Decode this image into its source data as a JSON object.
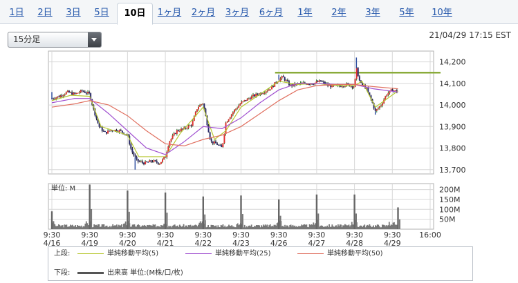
{
  "tabs": [
    {
      "label": "1日",
      "active": false
    },
    {
      "label": "2日",
      "active": false
    },
    {
      "label": "3日",
      "active": false
    },
    {
      "label": "5日",
      "active": false
    },
    {
      "label": "10日",
      "active": true
    },
    {
      "label": "1ヶ月",
      "active": false
    },
    {
      "label": "2ヶ月",
      "active": false
    },
    {
      "label": "3ヶ月",
      "active": false
    },
    {
      "label": "6ヶ月",
      "active": false
    },
    {
      "label": "1年",
      "active": false
    },
    {
      "label": "2年",
      "active": false
    },
    {
      "label": "3年",
      "active": false
    },
    {
      "label": "5年",
      "active": false
    },
    {
      "label": "10年",
      "active": false
    }
  ],
  "interval_select": {
    "value": "15分足"
  },
  "timestamp": "21/04/29 17:15 EST",
  "legend": {
    "upper_label": "上段:",
    "lower_label": "下段:",
    "upper_items": [
      {
        "label": "単純移動平均(5)",
        "color": "#b8c832"
      },
      {
        "label": "単純移動平均(25)",
        "color": "#a050d0"
      },
      {
        "label": "単純移動平均(50)",
        "color": "#e07060"
      }
    ],
    "lower_items": [
      {
        "label": "出来高 単位:(M株/口/枚)",
        "color": "#555555"
      }
    ]
  },
  "chart_data": {
    "type": "candlestick",
    "price_panel": {
      "ylim": [
        13680,
        14250
      ],
      "yticks": [
        "14,200",
        "14,100",
        "14,000",
        "13,900",
        "13,800",
        "13,700"
      ],
      "ytick_values": [
        14200,
        14100,
        14000,
        13900,
        13800,
        13700
      ],
      "reference_line": 14150,
      "reference_line_color": "#8aab3a",
      "close_path": [
        [
          0,
          14030
        ],
        [
          0.2,
          14040
        ],
        [
          0.4,
          14060
        ],
        [
          0.6,
          14050
        ],
        [
          0.8,
          14065
        ],
        [
          1.0,
          14050
        ],
        [
          1.1,
          13980
        ],
        [
          1.25,
          13900
        ],
        [
          1.4,
          13870
        ],
        [
          1.6,
          13885
        ],
        [
          1.8,
          13880
        ],
        [
          2.0,
          13860
        ],
        [
          2.1,
          13790
        ],
        [
          2.25,
          13740
        ],
        [
          2.45,
          13730
        ],
        [
          2.65,
          13740
        ],
        [
          2.85,
          13730
        ],
        [
          3.0,
          13760
        ],
        [
          3.1,
          13830
        ],
        [
          3.3,
          13880
        ],
        [
          3.5,
          13890
        ],
        [
          3.7,
          13910
        ],
        [
          3.85,
          13990
        ],
        [
          4.0,
          14010
        ],
        [
          4.05,
          13960
        ],
        [
          4.2,
          13830
        ],
        [
          4.35,
          13820
        ],
        [
          4.5,
          13800
        ],
        [
          4.6,
          13920
        ],
        [
          4.8,
          13970
        ],
        [
          5.0,
          14010
        ],
        [
          5.3,
          14040
        ],
        [
          5.6,
          14060
        ],
        [
          5.8,
          14080
        ],
        [
          5.95,
          14110
        ],
        [
          6.1,
          14130
        ],
        [
          6.3,
          14090
        ],
        [
          6.6,
          14100
        ],
        [
          6.9,
          14100
        ],
        [
          7.1,
          14110
        ],
        [
          7.3,
          14090
        ],
        [
          7.5,
          14085
        ],
        [
          7.8,
          14095
        ],
        [
          8.0,
          14085
        ],
        [
          8.05,
          14170
        ],
        [
          8.15,
          14100
        ],
        [
          8.3,
          14080
        ],
        [
          8.45,
          14020
        ],
        [
          8.55,
          13970
        ],
        [
          8.7,
          14000
        ],
        [
          8.85,
          14050
        ],
        [
          9.0,
          14070
        ],
        [
          9.15,
          14060
        ]
      ],
      "high_spikes": [
        [
          0,
          14060
        ],
        [
          6.0,
          14140
        ],
        [
          8.05,
          14220
        ]
      ],
      "low_spikes": [
        [
          2.2,
          13700
        ],
        [
          8.55,
          13955
        ]
      ]
    },
    "moving_averages": [
      {
        "name": "単純移動平均(5)",
        "color": "#b8c832",
        "values": [
          [
            0,
            14020
          ],
          [
            0.5,
            14045
          ],
          [
            1.0,
            14040
          ],
          [
            1.3,
            13900
          ],
          [
            2.0,
            13860
          ],
          [
            2.3,
            13760
          ],
          [
            3.0,
            13760
          ],
          [
            3.4,
            13870
          ],
          [
            4.0,
            13990
          ],
          [
            4.3,
            13840
          ],
          [
            4.6,
            13880
          ],
          [
            5.0,
            13990
          ],
          [
            5.5,
            14050
          ],
          [
            6.0,
            14110
          ],
          [
            6.5,
            14095
          ],
          [
            7.0,
            14100
          ],
          [
            7.5,
            14090
          ],
          [
            8.0,
            14090
          ],
          [
            8.2,
            14110
          ],
          [
            8.55,
            13990
          ],
          [
            9.15,
            14065
          ]
        ]
      },
      {
        "name": "単純移動平均(25)",
        "color": "#a050d0",
        "values": [
          [
            0,
            14010
          ],
          [
            0.6,
            14030
          ],
          [
            1.0,
            14030
          ],
          [
            1.5,
            13960
          ],
          [
            2.0,
            13880
          ],
          [
            2.5,
            13800
          ],
          [
            3.0,
            13770
          ],
          [
            3.5,
            13830
          ],
          [
            4.0,
            13900
          ],
          [
            4.5,
            13890
          ],
          [
            5.0,
            13940
          ],
          [
            5.5,
            14010
          ],
          [
            6.0,
            14070
          ],
          [
            6.5,
            14100
          ],
          [
            7.0,
            14100
          ],
          [
            7.5,
            14095
          ],
          [
            8.0,
            14095
          ],
          [
            8.5,
            14075
          ],
          [
            9.15,
            14060
          ]
        ]
      },
      {
        "name": "単純移動平均(50)",
        "color": "#e07060",
        "values": [
          [
            0,
            13990
          ],
          [
            0.6,
            14005
          ],
          [
            1.0,
            14020
          ],
          [
            1.5,
            14000
          ],
          [
            2.0,
            13950
          ],
          [
            2.5,
            13880
          ],
          [
            3.0,
            13820
          ],
          [
            3.5,
            13810
          ],
          [
            4.0,
            13840
          ],
          [
            4.5,
            13860
          ],
          [
            5.0,
            13900
          ],
          [
            5.5,
            13960
          ],
          [
            6.0,
            14020
          ],
          [
            6.5,
            14070
          ],
          [
            7.0,
            14090
          ],
          [
            7.5,
            14095
          ],
          [
            8.0,
            14095
          ],
          [
            8.5,
            14085
          ],
          [
            9.15,
            14075
          ]
        ]
      }
    ],
    "volume_panel": {
      "unit_label": "単位: M",
      "ylim": [
        0,
        230
      ],
      "yticks": [
        "200M",
        "150M",
        "100M",
        "50M"
      ],
      "ytick_values": [
        200,
        150,
        100,
        50
      ],
      "open_spikes": [
        {
          "day": 0,
          "value": 90
        },
        {
          "day": 1,
          "value": 225
        },
        {
          "day": 2,
          "value": 195
        },
        {
          "day": 3,
          "value": 185
        },
        {
          "day": 4,
          "value": 165
        },
        {
          "day": 5,
          "value": 170
        },
        {
          "day": 6,
          "value": 150
        },
        {
          "day": 7,
          "value": 175
        },
        {
          "day": 8,
          "value": 175
        },
        {
          "day": 9,
          "value": 110
        }
      ],
      "base_level": 18
    },
    "x_ticks": [
      {
        "time": "9:30",
        "date": "4/16",
        "pos": 0
      },
      {
        "time": "9:30",
        "date": "4/19",
        "pos": 1
      },
      {
        "time": "9:30",
        "date": "4/20",
        "pos": 2
      },
      {
        "time": "9:30",
        "date": "4/21",
        "pos": 3
      },
      {
        "time": "9:30",
        "date": "4/22",
        "pos": 4
      },
      {
        "time": "9:30",
        "date": "4/23",
        "pos": 5
      },
      {
        "time": "9:30",
        "date": "4/26",
        "pos": 6
      },
      {
        "time": "9:30",
        "date": "4/27",
        "pos": 7
      },
      {
        "time": "9:30",
        "date": "4/28",
        "pos": 8
      },
      {
        "time": "9:30",
        "date": "4/29",
        "pos": 9
      },
      {
        "time": "16:00",
        "date": "",
        "pos": 10
      }
    ]
  }
}
